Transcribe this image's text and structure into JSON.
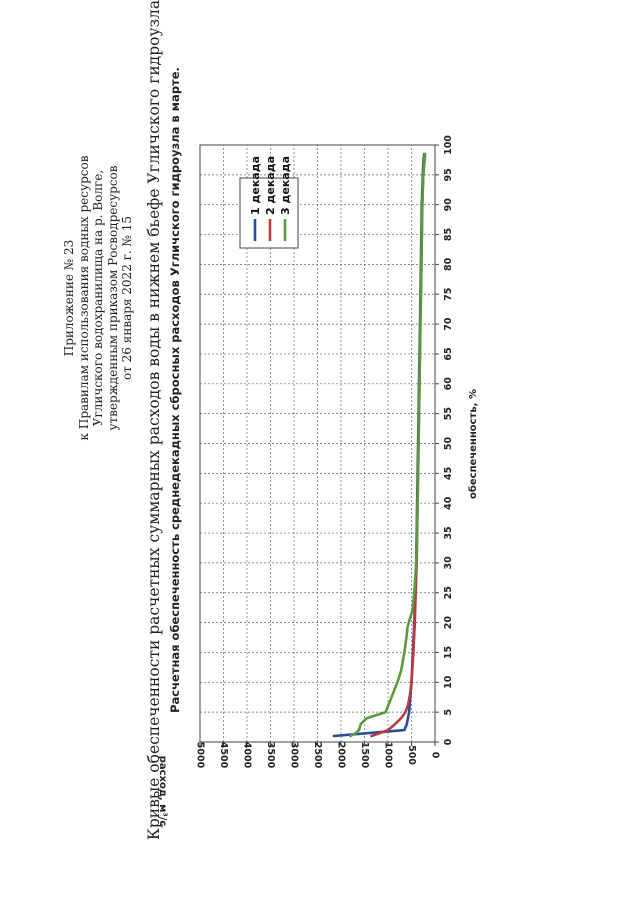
{
  "header": {
    "lines": [
      "Приложение № 23",
      "к Правилам использования водных ресурсов",
      "Угличского водохранилища на р. Волге,",
      "утвержденным приказом Росводресурсов",
      "от 26 января 2022 г. № 15"
    ]
  },
  "main_title": "Кривые обеспеченности расчетных суммарных расходов воды в нижнем бьефе Угличского гидроузла",
  "chart_data": {
    "type": "line",
    "title": "Расчетная обеспеченность среднедекадных сбросных расходов Угличского гидроузла в марте.",
    "xlabel": "обеспеченность, %",
    "ylabel": "расход, м³/с",
    "xlim": [
      0,
      100
    ],
    "ylim": [
      0,
      5000
    ],
    "x_ticks": [
      0,
      5,
      10,
      15,
      20,
      25,
      30,
      35,
      40,
      45,
      50,
      55,
      60,
      65,
      70,
      75,
      80,
      85,
      90,
      95,
      100
    ],
    "y_ticks": [
      0,
      500,
      1000,
      1500,
      2000,
      2500,
      3000,
      3500,
      4000,
      4500,
      5000
    ],
    "grid": true,
    "legend_position": "top-left",
    "series": [
      {
        "name": "1 декада",
        "color": "#2b4a9c",
        "x": [
          1,
          2,
          3,
          5,
          8,
          10,
          15,
          20,
          25,
          30,
          40,
          50,
          60,
          70,
          80,
          90,
          95,
          97,
          98.5
        ],
        "y": [
          2150,
          650,
          600,
          550,
          520,
          500,
          470,
          440,
          420,
          400,
          380,
          360,
          340,
          320,
          300,
          280,
          260,
          250,
          230
        ]
      },
      {
        "name": "2 декада",
        "color": "#b83a3f",
        "x": [
          1,
          2,
          3,
          4,
          5,
          6,
          8,
          10,
          15,
          20,
          25,
          30,
          40,
          50,
          60,
          70,
          80,
          90,
          95,
          98.5
        ],
        "y": [
          1350,
          1000,
          850,
          720,
          630,
          580,
          530,
          500,
          460,
          430,
          410,
          390,
          370,
          350,
          330,
          310,
          290,
          270,
          250,
          210
        ]
      },
      {
        "name": "3 декада",
        "color": "#5a9a3e",
        "x": [
          1,
          1.5,
          2,
          3,
          4,
          5,
          6,
          8,
          10,
          12,
          15,
          18,
          19,
          20,
          22,
          25,
          30,
          40,
          50,
          60,
          70,
          80,
          90,
          95,
          98.5
        ],
        "y": [
          1800,
          1680,
          1620,
          1580,
          1450,
          1050,
          1000,
          900,
          800,
          720,
          650,
          600,
          590,
          560,
          480,
          440,
          400,
          370,
          350,
          330,
          310,
          290,
          270,
          250,
          220
        ]
      }
    ]
  }
}
